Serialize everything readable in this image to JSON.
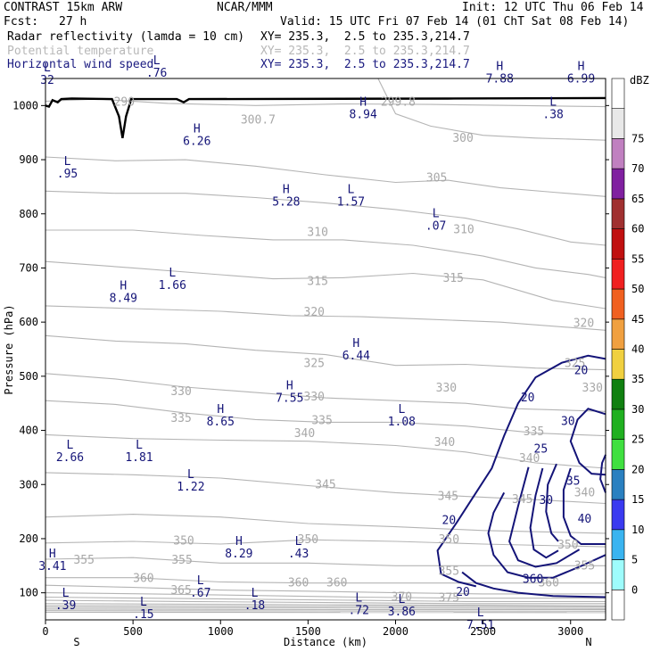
{
  "header": {
    "title": "CONTRAST 15km ARW",
    "center": "NCAR/MMM",
    "init": "Init: 12 UTC Thu 06 Feb 14",
    "fcst_label": "Fcst:",
    "fcst_value": "27 h",
    "valid": "Valid: 15 UTC Fri 07 Feb 14 (01 ChT Sat 08 Feb 14)",
    "fields": [
      {
        "name": "Radar reflectivity (lamda = 10 cm)",
        "xy": "XY= 235.3,  2.5 to 235.3,214.7"
      },
      {
        "name": "Potential temperature",
        "xy": "XY= 235.3,  2.5 to 235.3,214.7"
      },
      {
        "name": "Horizontal wind speed",
        "xy": "XY= 235.3,  2.5 to 235.3,214.7"
      }
    ]
  },
  "chart_data": {
    "type": "contour",
    "xlabel": "Distance (km)",
    "ylabel": "Pressure (hPa)",
    "xlim": [
      0,
      3200
    ],
    "ylim": [
      1050,
      50
    ],
    "x_ticks": [
      0,
      500,
      1000,
      1500,
      2000,
      2500,
      3000
    ],
    "y_ticks": [
      100,
      200,
      300,
      400,
      500,
      600,
      700,
      800,
      900,
      1000
    ],
    "x_end_labels": {
      "left": "S",
      "right": "N"
    },
    "colorbar": {
      "unit": "dBZ",
      "levels": [
        0,
        5,
        10,
        15,
        20,
        25,
        30,
        35,
        40,
        45,
        50,
        55,
        60,
        65,
        70,
        75
      ],
      "colors": [
        "#ffffff",
        "#9efcfc",
        "#3ab4f0",
        "#3a3af0",
        "#2a80c0",
        "#40e040",
        "#20b020",
        "#108010",
        "#f0d040",
        "#f0a040",
        "#f06020",
        "#f02020",
        "#c01010",
        "#a03030",
        "#8020a0",
        "#c080c0",
        "#e8e8e8"
      ]
    },
    "theta_labels": [
      {
        "x": 560,
        "p": 127,
        "label": "360"
      },
      {
        "x": 775,
        "p": 104,
        "label": "365"
      },
      {
        "x": 1445,
        "p": 118,
        "label": "360"
      },
      {
        "x": 1665,
        "p": 118,
        "label": "360"
      },
      {
        "x": 2875,
        "p": 118,
        "label": "360"
      },
      {
        "x": 2305,
        "p": 90,
        "label": "375"
      },
      {
        "x": 2035,
        "p": 92,
        "label": "370"
      },
      {
        "x": 220,
        "p": 160,
        "label": "355"
      },
      {
        "x": 780,
        "p": 160,
        "label": "355"
      },
      {
        "x": 2305,
        "p": 140,
        "label": "355"
      },
      {
        "x": 3080,
        "p": 150,
        "label": "355"
      },
      {
        "x": 790,
        "p": 196,
        "label": "350"
      },
      {
        "x": 1500,
        "p": 198,
        "label": "350"
      },
      {
        "x": 2305,
        "p": 198,
        "label": "350"
      },
      {
        "x": 2985,
        "p": 188,
        "label": "350"
      },
      {
        "x": 1600,
        "p": 300,
        "label": "345"
      },
      {
        "x": 2300,
        "p": 278,
        "label": "345"
      },
      {
        "x": 2725,
        "p": 272,
        "label": "345"
      },
      {
        "x": 1480,
        "p": 394,
        "label": "340"
      },
      {
        "x": 2280,
        "p": 378,
        "label": "340"
      },
      {
        "x": 2765,
        "p": 348,
        "label": "340"
      },
      {
        "x": 3080,
        "p": 285,
        "label": "340"
      },
      {
        "x": 775,
        "p": 422,
        "label": "335"
      },
      {
        "x": 1580,
        "p": 418,
        "label": "335"
      },
      {
        "x": 2790,
        "p": 398,
        "label": "335"
      },
      {
        "x": 3125,
        "p": 478,
        "label": "330"
      },
      {
        "x": 775,
        "p": 472,
        "label": "330"
      },
      {
        "x": 1535,
        "p": 462,
        "label": "330"
      },
      {
        "x": 2290,
        "p": 478,
        "label": "330"
      },
      {
        "x": 1535,
        "p": 524,
        "label": "325"
      },
      {
        "x": 3025,
        "p": 524,
        "label": "325"
      },
      {
        "x": 1535,
        "p": 618,
        "label": "320"
      },
      {
        "x": 3075,
        "p": 598,
        "label": "320"
      },
      {
        "x": 1555,
        "p": 675,
        "label": "315"
      },
      {
        "x": 2330,
        "p": 681,
        "label": "315"
      },
      {
        "x": 1555,
        "p": 766,
        "label": "310"
      },
      {
        "x": 2390,
        "p": 771,
        "label": "310"
      },
      {
        "x": 2235,
        "p": 866,
        "label": "305"
      },
      {
        "x": 2385,
        "p": 940,
        "label": "300"
      },
      {
        "x": 1215,
        "p": 973,
        "label": "300.7"
      },
      {
        "x": 2015,
        "p": 1006,
        "label": "299.8"
      },
      {
        "x": 450,
        "p": 1006,
        "label": "290"
      }
    ],
    "wind_labels": [
      {
        "x": 2385,
        "p": 103,
        "label": "20"
      },
      {
        "x": 2785,
        "p": 127,
        "label": "360"
      },
      {
        "x": 2305,
        "p": 235,
        "label": "20"
      },
      {
        "x": 2860,
        "p": 272,
        "label": "30"
      },
      {
        "x": 3080,
        "p": 238,
        "label": "40"
      },
      {
        "x": 3015,
        "p": 308,
        "label": "35"
      },
      {
        "x": 2830,
        "p": 367,
        "label": "25"
      },
      {
        "x": 2985,
        "p": 418,
        "label": "30"
      },
      {
        "x": 2755,
        "p": 462,
        "label": "20"
      },
      {
        "x": 3060,
        "p": 512,
        "label": "20"
      }
    ],
    "extrema": [
      {
        "type": "L",
        "x": 115,
        "p": 93,
        "value": ".39"
      },
      {
        "type": "L",
        "x": 560,
        "p": 76,
        "value": ".15"
      },
      {
        "type": "L",
        "x": 885,
        "p": 116,
        "value": ".67"
      },
      {
        "type": "L",
        "x": 1195,
        "p": 93,
        "value": ".18"
      },
      {
        "type": "L",
        "x": 1790,
        "p": 84,
        "value": ".72"
      },
      {
        "type": "L",
        "x": 2035,
        "p": 81,
        "value": "3.86"
      },
      {
        "type": "L",
        "x": 2485,
        "p": 57,
        "value": "7.51"
      },
      {
        "type": "H",
        "x": 40,
        "p": 165,
        "value": "3.41"
      },
      {
        "type": "H",
        "x": 1105,
        "p": 188,
        "value": "8.29"
      },
      {
        "type": "L",
        "x": 1445,
        "p": 188,
        "value": ".43"
      },
      {
        "type": "L",
        "x": 830,
        "p": 312,
        "value": "1.22"
      },
      {
        "type": "L",
        "x": 140,
        "p": 366,
        "value": "2.66"
      },
      {
        "type": "L",
        "x": 535,
        "p": 366,
        "value": "1.81"
      },
      {
        "type": "H",
        "x": 1000,
        "p": 432,
        "value": "8.65"
      },
      {
        "type": "L",
        "x": 2035,
        "p": 432,
        "value": "1.08"
      },
      {
        "type": "H",
        "x": 1395,
        "p": 476,
        "value": "7.55"
      },
      {
        "type": "H",
        "x": 1775,
        "p": 554,
        "value": "6.44"
      },
      {
        "type": "H",
        "x": 445,
        "p": 660,
        "value": "8.49"
      },
      {
        "type": "L",
        "x": 725,
        "p": 684,
        "value": "1.66"
      },
      {
        "type": "L",
        "x": 2230,
        "p": 794,
        "value": ".07"
      },
      {
        "type": "H",
        "x": 1375,
        "p": 838,
        "value": "5.28"
      },
      {
        "type": "L",
        "x": 1745,
        "p": 838,
        "value": "1.57"
      },
      {
        "type": "L",
        "x": 125,
        "p": 890,
        "value": ".95"
      },
      {
        "type": "H",
        "x": 865,
        "p": 950,
        "value": "6.26"
      },
      {
        "type": "H",
        "x": 1815,
        "p": 1000,
        "value": "8.94"
      },
      {
        "type": "L",
        "x": 2900,
        "p": 1000,
        "value": ".38"
      },
      {
        "type": "L",
        "x": 10,
        "p": 1063,
        "value": "32"
      },
      {
        "type": "L",
        "x": 635,
        "p": 1076,
        "value": ".76"
      },
      {
        "type": "H",
        "x": 2595,
        "p": 1066,
        "value": "7.88"
      },
      {
        "type": "H",
        "x": 3060,
        "p": 1066,
        "value": "6.99"
      }
    ]
  }
}
